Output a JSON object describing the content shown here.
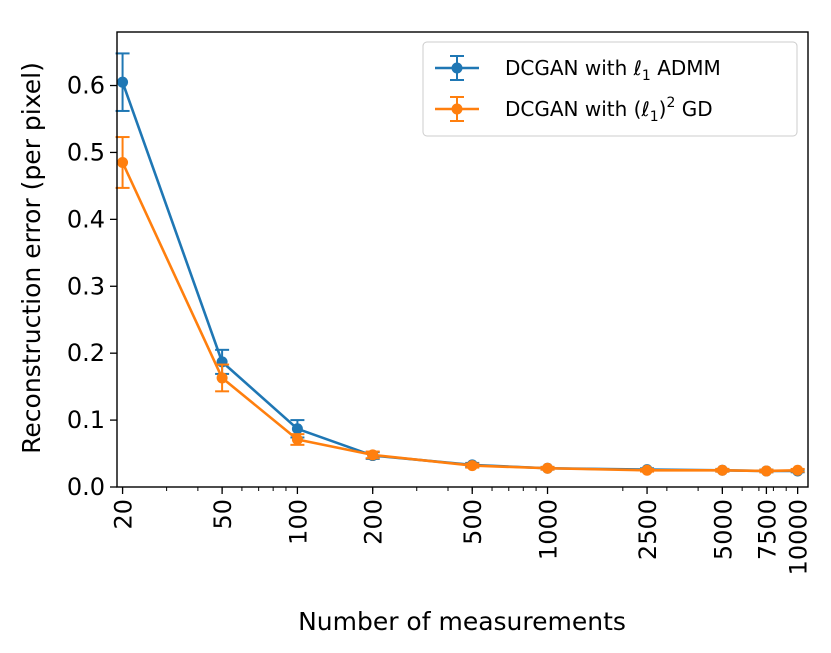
{
  "chart_data": {
    "type": "line",
    "title": "",
    "xlabel": "Number of measurements",
    "ylabel": "Reconstruction error (per pixel)",
    "xscale": "log",
    "xlim": [
      19,
      11000
    ],
    "ylim": [
      0.0,
      0.68
    ],
    "x": [
      20,
      50,
      100,
      200,
      500,
      1000,
      2500,
      5000,
      7500,
      10000
    ],
    "x_tick_labels": [
      "20",
      "50",
      "100",
      "200",
      "500",
      "1000",
      "2500",
      "5000",
      "7500",
      "10000"
    ],
    "y_ticks": [
      0.0,
      0.1,
      0.2,
      0.3,
      0.4,
      0.5,
      0.6
    ],
    "y_tick_labels": [
      "0.0",
      "0.1",
      "0.2",
      "0.3",
      "0.4",
      "0.5",
      "0.6"
    ],
    "legend_position": "top-right",
    "series": [
      {
        "name_prefix": "DCGAN with ",
        "name_math": "ℓ",
        "name_sub": "1",
        "name_suffix": " ADMM",
        "color": "#1f77b4",
        "values": [
          0.605,
          0.187,
          0.087,
          0.047,
          0.033,
          0.028,
          0.026,
          0.025,
          0.024,
          0.024
        ],
        "errors": [
          0.043,
          0.018,
          0.013,
          0.005,
          0.003,
          0.002,
          0.002,
          0.002,
          0.002,
          0.002
        ]
      },
      {
        "name_prefix": "DCGAN with (",
        "name_math": "ℓ",
        "name_sub": "1",
        "name_sup": "2",
        "name_suffix": " GD",
        "color": "#ff7f0e",
        "values": [
          0.485,
          0.163,
          0.071,
          0.048,
          0.032,
          0.028,
          0.025,
          0.025,
          0.024,
          0.025
        ],
        "errors": [
          0.038,
          0.02,
          0.008,
          0.005,
          0.003,
          0.002,
          0.002,
          0.002,
          0.002,
          0.002
        ]
      }
    ]
  }
}
